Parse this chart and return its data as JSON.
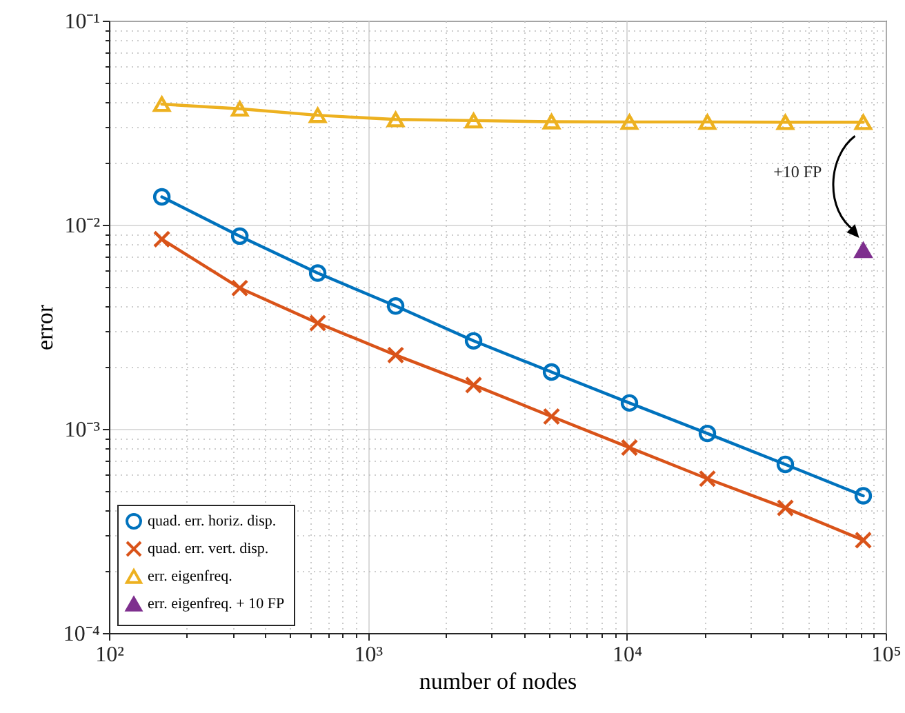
{
  "chart_data": {
    "type": "line",
    "xlabel": "number of nodes",
    "ylabel": "error",
    "log": "xy",
    "grid": true,
    "legend": "bottom left",
    "xlim": [
      100,
      100000
    ],
    "ylim": [
      0.0001,
      0.1
    ],
    "xticks": [
      {
        "value": 100,
        "label": "10²"
      },
      {
        "value": 200,
        "label": null
      },
      {
        "value": 300,
        "label": null
      },
      {
        "value": 400,
        "label": null
      },
      {
        "value": 500,
        "label": null
      },
      {
        "value": 600,
        "label": null
      },
      {
        "value": 700,
        "label": null
      },
      {
        "value": 800,
        "label": null
      },
      {
        "value": 900,
        "label": null
      },
      {
        "value": 1000,
        "label": "10³"
      },
      {
        "value": 2000,
        "label": null
      },
      {
        "value": 3000,
        "label": null
      },
      {
        "value": 4000,
        "label": null
      },
      {
        "value": 5000,
        "label": null
      },
      {
        "value": 6000,
        "label": null
      },
      {
        "value": 7000,
        "label": null
      },
      {
        "value": 8000,
        "label": null
      },
      {
        "value": 9000,
        "label": null
      },
      {
        "value": 10000,
        "label": "10⁴"
      },
      {
        "value": 20000,
        "label": null
      },
      {
        "value": 30000,
        "label": null
      },
      {
        "value": 40000,
        "label": null
      },
      {
        "value": 50000,
        "label": null
      },
      {
        "value": 60000,
        "label": null
      },
      {
        "value": 70000,
        "label": null
      },
      {
        "value": 80000,
        "label": null
      },
      {
        "value": 90000,
        "label": null
      },
      {
        "value": 100000,
        "label": "10⁵"
      }
    ],
    "yticks": [
      {
        "value": 0.0001,
        "label": "10⁻⁴"
      },
      {
        "value": 0.0002,
        "label": null
      },
      {
        "value": 0.0003,
        "label": null
      },
      {
        "value": 0.0004,
        "label": null
      },
      {
        "value": 0.0005,
        "label": null
      },
      {
        "value": 0.0006,
        "label": null
      },
      {
        "value": 0.0007,
        "label": null
      },
      {
        "value": 0.0008,
        "label": null
      },
      {
        "value": 0.0009,
        "label": null
      },
      {
        "value": 0.001,
        "label": "10⁻³"
      },
      {
        "value": 0.002,
        "label": null
      },
      {
        "value": 0.003,
        "label": null
      },
      {
        "value": 0.004,
        "label": null
      },
      {
        "value": 0.005,
        "label": null
      },
      {
        "value": 0.006,
        "label": null
      },
      {
        "value": 0.007,
        "label": null
      },
      {
        "value": 0.008,
        "label": null
      },
      {
        "value": 0.009,
        "label": null
      },
      {
        "value": 0.01,
        "label": "10⁻²"
      },
      {
        "value": 0.02,
        "label": null
      },
      {
        "value": 0.03,
        "label": null
      },
      {
        "value": 0.04,
        "label": null
      },
      {
        "value": 0.05,
        "label": null
      },
      {
        "value": 0.06,
        "label": null
      },
      {
        "value": 0.07,
        "label": null
      },
      {
        "value": 0.08,
        "label": null
      },
      {
        "value": 0.09,
        "label": null
      },
      {
        "value": 0.1,
        "label": "10⁻¹"
      }
    ],
    "x": [
      160,
      320,
      640,
      1280,
      2560,
      5120,
      10240,
      20480,
      40960,
      81920
    ],
    "series": [
      {
        "name": "quad. err. horiz. disp.",
        "marker": "circle",
        "color": "#0072bd",
        "values": [
          0.0137,
          0.0088,
          0.0058,
          0.004,
          0.0027,
          0.0019,
          0.00134,
          0.00095,
          0.00067,
          0.00047
        ]
      },
      {
        "name": "quad. err. vert. disp.",
        "marker": "cross",
        "color": "#d95319",
        "values": [
          0.0085,
          0.0049,
          0.0033,
          0.0023,
          0.00164,
          0.00115,
          0.00081,
          0.00057,
          0.00041,
          0.000285
        ]
      },
      {
        "name": "err. eigenfreq.",
        "marker": "triangle",
        "color": "#edb120",
        "values": [
          0.039,
          0.037,
          0.0344,
          0.0328,
          0.0324,
          0.032,
          0.0319,
          0.0319,
          0.0318,
          0.0318
        ]
      },
      {
        "name": "err. eigenfreq. + 10 FP",
        "type": "scatter",
        "marker": "triangle",
        "color": "#7e2f8e",
        "values": [
          null,
          null,
          null,
          null,
          null,
          null,
          null,
          null,
          null,
          0.0075
        ]
      }
    ],
    "annotations": [
      "+10 FP"
    ]
  }
}
